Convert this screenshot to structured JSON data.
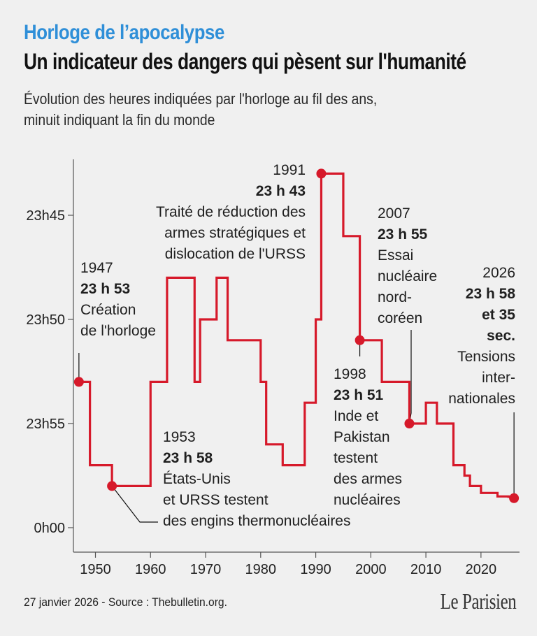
{
  "header": {
    "kicker": "Horloge de l’apocalypse",
    "title": "Un indicateur des dangers qui pèsent sur l'humanité",
    "subtitle_line1": "Évolution des heures indiquées par l'horloge au fil des ans,",
    "subtitle_line2": "minuit indiquant la fin du monde"
  },
  "footer": {
    "source": "27 janvier 2026 - Source : Thebulletin.org.",
    "logo": "Le Parisien"
  },
  "colors": {
    "line": "#d6192a",
    "kicker": "#2f8fd8",
    "axis": "#555555",
    "background": "#f0f0f0"
  },
  "chart_data": {
    "type": "line",
    "step": true,
    "x_label": "",
    "y_label": "",
    "x_ticks": [
      1950,
      1960,
      1970,
      1980,
      1990,
      2000,
      2010,
      2020
    ],
    "y_ticks": [
      {
        "label": "23h45",
        "minutes_to_midnight": 15
      },
      {
        "label": "23h50",
        "minutes_to_midnight": 10
      },
      {
        "label": "23h55",
        "minutes_to_midnight": 5
      },
      {
        "label": "0h00",
        "minutes_to_midnight": 0
      }
    ],
    "x_range": [
      1946,
      2027
    ],
    "y_range_minutes_to_midnight": [
      17,
      0
    ],
    "series": [
      {
        "x": [
          1947,
          1949,
          1953,
          1960,
          1963,
          1968,
          1969,
          1972,
          1974,
          1980,
          1981,
          1984,
          1988,
          1990,
          1991,
          1995,
          1998,
          2002,
          2007,
          2010,
          2012,
          2015,
          2017,
          2018,
          2020,
          2023,
          2025,
          2026
        ],
        "minutes_to_midnight": [
          7,
          3,
          2,
          7,
          12,
          7,
          10,
          12,
          9,
          7,
          4,
          3,
          6,
          10,
          17,
          14,
          9,
          7,
          5,
          6,
          5,
          3,
          2.5,
          2,
          1.667,
          1.5,
          1.483,
          1.417
        ]
      }
    ],
    "annotations": [
      {
        "year": "1947",
        "time": "23 h 53",
        "lines": [
          "Création",
          "de l'horloge"
        ]
      },
      {
        "year": "1953",
        "time": "23 h 58",
        "lines": [
          "États-Unis",
          "et URSS testent",
          "des engins thermonucléaires"
        ]
      },
      {
        "year": "1991",
        "time": "23 h 43",
        "lines": [
          "Traité de réduction des",
          "armes stratégiques et",
          "dislocation de l'URSS"
        ]
      },
      {
        "year": "1998",
        "time": "23 h 51",
        "lines": [
          "Inde et",
          "Pakistan",
          "testent",
          "des armes",
          "nucléaires"
        ]
      },
      {
        "year": "2007",
        "time": "23 h 55",
        "lines": [
          "Essai",
          "nucléaire",
          "nord-",
          "coréen"
        ]
      },
      {
        "year": "2026",
        "time_lines": [
          "23 h 58",
          "et 35",
          "sec."
        ],
        "lines": [
          "Tensions",
          "inter-",
          "nationales"
        ]
      }
    ]
  }
}
